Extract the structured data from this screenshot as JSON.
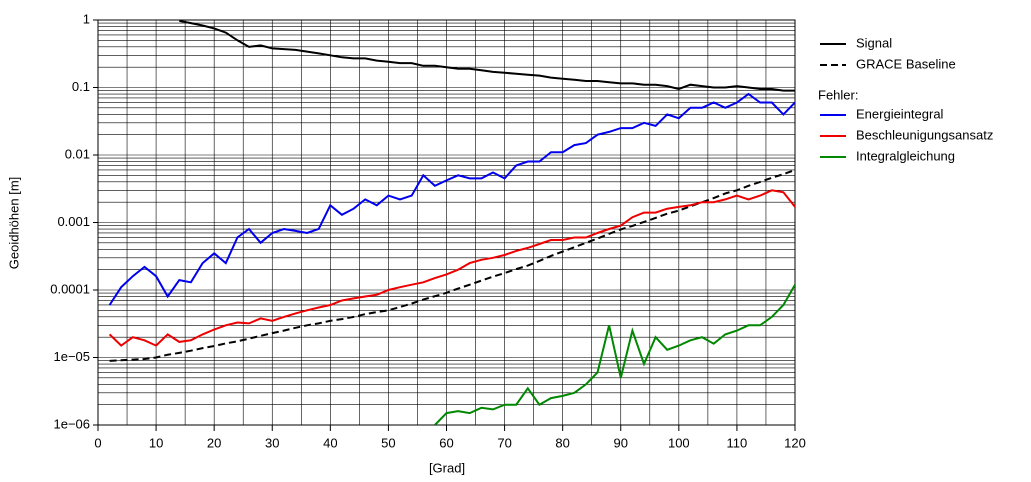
{
  "chart_data": {
    "type": "line",
    "log_y": true,
    "grid": true,
    "ylabel": "Geoidhöhen [m]",
    "xlabel": "[Grad]",
    "legend_group_title": "Fehler:",
    "xlim": [
      0,
      120
    ],
    "xticks": [
      0,
      10,
      20,
      30,
      40,
      50,
      60,
      70,
      80,
      90,
      100,
      110,
      120
    ],
    "ylim": [
      1e-06,
      1
    ],
    "yticks": [
      {
        "value": 1e-06,
        "label": "1e−06"
      },
      {
        "value": 1e-05,
        "label": "1e−05"
      },
      0.0001,
      0.001,
      0.01,
      0.1,
      1
    ],
    "x": [
      2,
      4,
      6,
      8,
      10,
      12,
      14,
      16,
      18,
      20,
      22,
      24,
      26,
      28,
      30,
      32,
      34,
      36,
      38,
      40,
      42,
      44,
      46,
      48,
      50,
      52,
      54,
      56,
      58,
      60,
      62,
      64,
      66,
      68,
      70,
      72,
      74,
      76,
      78,
      80,
      82,
      84,
      86,
      88,
      90,
      92,
      94,
      96,
      98,
      100,
      102,
      104,
      106,
      108,
      110,
      112,
      114,
      116,
      118,
      120
    ],
    "series": [
      {
        "name": "Signal",
        "color": "#000000",
        "dash": false,
        "values": [
          null,
          null,
          null,
          null,
          null,
          null,
          0.97,
          0.9,
          0.83,
          0.75,
          0.65,
          0.5,
          0.4,
          0.42,
          0.38,
          0.37,
          0.36,
          0.34,
          0.32,
          0.3,
          0.28,
          0.27,
          0.27,
          0.25,
          0.24,
          0.23,
          0.23,
          0.21,
          0.21,
          0.2,
          0.19,
          0.19,
          0.18,
          0.17,
          0.165,
          0.16,
          0.155,
          0.15,
          0.14,
          0.135,
          0.13,
          0.125,
          0.125,
          0.12,
          0.115,
          0.115,
          0.11,
          0.11,
          0.105,
          0.095,
          0.11,
          0.105,
          0.1,
          0.1,
          0.105,
          0.1,
          0.095,
          0.095,
          0.09,
          0.09
        ]
      },
      {
        "name": "GRACE Baseline",
        "color": "#000000",
        "dash": true,
        "values": [
          8.9e-06,
          9.1e-06,
          9.3e-06,
          9.5e-06,
          1e-05,
          1.1e-05,
          1.17e-05,
          1.26e-05,
          1.38e-05,
          1.48e-05,
          1.62e-05,
          1.74e-05,
          1.9e-05,
          2.1e-05,
          2.3e-05,
          2.5e-05,
          2.75e-05,
          3e-05,
          3.2e-05,
          3.5e-05,
          3.7e-05,
          4e-05,
          4.4e-05,
          4.7e-05,
          5e-05,
          5.6e-05,
          6.3e-05,
          7.2e-05,
          8.1e-05,
          9.1e-05,
          0.000105,
          0.00012,
          0.000138,
          0.000158,
          0.000178,
          0.000204,
          0.00023,
          0.00027,
          0.00032,
          0.00037,
          0.00043,
          0.0005,
          0.00058,
          0.00068,
          0.00079,
          0.00089,
          0.00102,
          0.00117,
          0.00135,
          0.0015,
          0.00174,
          0.002,
          0.0023,
          0.0027,
          0.003,
          0.0035,
          0.004,
          0.0046,
          0.0052,
          0.006
        ]
      },
      {
        "name": "Energieintegral",
        "color": "#0000ee",
        "dash": false,
        "values": [
          6e-05,
          0.00011,
          0.00016,
          0.00022,
          0.00016,
          8e-05,
          0.00014,
          0.00013,
          0.00025,
          0.00035,
          0.00025,
          0.0006,
          0.0008,
          0.0005,
          0.0007,
          0.0008,
          0.00075,
          0.0007,
          0.0008,
          0.0018,
          0.0013,
          0.0016,
          0.0022,
          0.0018,
          0.0025,
          0.0022,
          0.0025,
          0.005,
          0.0035,
          0.0042,
          0.005,
          0.0045,
          0.0045,
          0.0055,
          0.0045,
          0.007,
          0.008,
          0.008,
          0.011,
          0.011,
          0.014,
          0.015,
          0.02,
          0.022,
          0.025,
          0.025,
          0.03,
          0.027,
          0.04,
          0.035,
          0.05,
          0.05,
          0.06,
          0.05,
          0.06,
          0.08,
          0.06,
          0.06,
          0.04,
          0.06
        ]
      },
      {
        "name": "Beschleunigungsansatz",
        "color": "#ee0000",
        "dash": false,
        "values": [
          2.2e-05,
          1.5e-05,
          2e-05,
          1.8e-05,
          1.5e-05,
          2.2e-05,
          1.7e-05,
          1.8e-05,
          2.2e-05,
          2.6e-05,
          3e-05,
          3.3e-05,
          3.2e-05,
          3.8e-05,
          3.5e-05,
          4e-05,
          4.5e-05,
          5e-05,
          5.5e-05,
          6e-05,
          7e-05,
          7.5e-05,
          8e-05,
          8.5e-05,
          0.0001,
          0.00011,
          0.00012,
          0.00013,
          0.00015,
          0.00017,
          0.0002,
          0.00025,
          0.00028,
          0.0003,
          0.00033,
          0.00038,
          0.00042,
          0.00048,
          0.00055,
          0.00055,
          0.0006,
          0.0006,
          0.0007,
          0.0008,
          0.0009,
          0.0012,
          0.0014,
          0.0014,
          0.0016,
          0.0017,
          0.0018,
          0.002,
          0.002,
          0.0022,
          0.0025,
          0.0022,
          0.0025,
          0.003,
          0.0028,
          0.0017
        ]
      },
      {
        "name": "Integralgleichung",
        "color": "#008800",
        "dash": false,
        "values": [
          null,
          null,
          null,
          null,
          null,
          null,
          null,
          null,
          null,
          null,
          null,
          null,
          null,
          null,
          null,
          null,
          null,
          null,
          null,
          null,
          null,
          null,
          null,
          null,
          null,
          null,
          null,
          null,
          1e-06,
          1.5e-06,
          1.6e-06,
          1.5e-06,
          1.8e-06,
          1.7e-06,
          2e-06,
          2e-06,
          3.5e-06,
          2e-06,
          2.5e-06,
          2.7e-06,
          3e-06,
          4e-06,
          6e-06,
          3e-05,
          5e-06,
          2.5e-05,
          8e-06,
          2e-05,
          1.3e-05,
          1.5e-05,
          1.8e-05,
          2e-05,
          1.6e-05,
          2.2e-05,
          2.5e-05,
          3e-05,
          3e-05,
          4e-05,
          6e-05,
          0.00012
        ]
      }
    ]
  }
}
